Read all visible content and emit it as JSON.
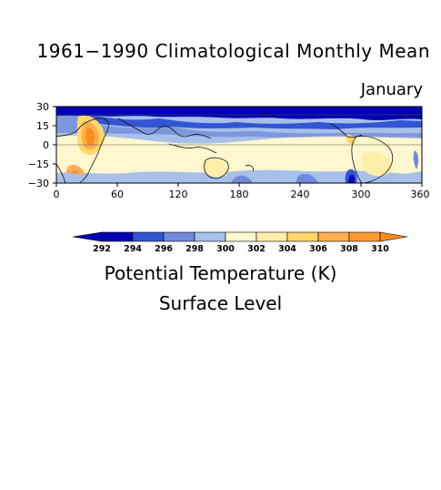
{
  "title": "1961−1990 Climatological Monthly Mean",
  "month": "January",
  "variable_label": "Potential Temperature (K)",
  "level_label": "Surface Level",
  "map": {
    "x_ticks": [
      "0",
      "60",
      "120",
      "180",
      "240",
      "300",
      "360"
    ],
    "y_ticks": [
      "30",
      "15",
      "0",
      "−15",
      "−30"
    ],
    "lon_range": [
      0,
      360
    ],
    "lat_range": [
      -30,
      30
    ]
  },
  "colorbar": {
    "labels": [
      "292",
      "294",
      "296",
      "298",
      "300",
      "302",
      "304",
      "306",
      "308",
      "310"
    ],
    "colors": [
      "#0000b4",
      "#3255d4",
      "#6f8ad8",
      "#a6c0ea",
      "#fff7cf",
      "#ffeeaa",
      "#ffd76b",
      "#ffad4f",
      "#ff8a1a"
    ]
  }
}
